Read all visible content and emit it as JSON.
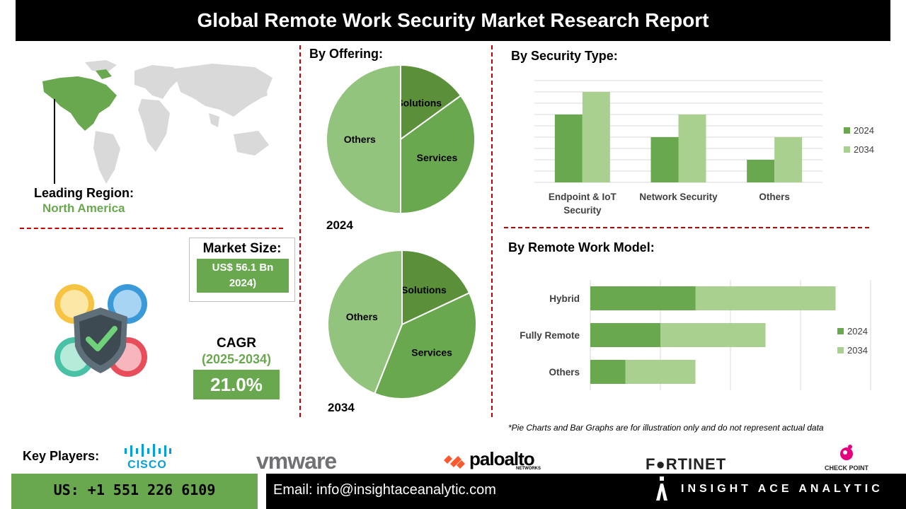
{
  "title": "Global Remote Work Security Market Research Report",
  "region": {
    "heading": "Leading  Region:",
    "value": "North America"
  },
  "market_size": {
    "heading": "Market Size:",
    "value": "US$ 56.1 Bn 2024)"
  },
  "cagr": {
    "heading": "CAGR",
    "period": "(2025-2034)",
    "value": "21.0%"
  },
  "offering": {
    "title": "By Offering:",
    "pie_2024_label": "2024",
    "pie_2034_label": "2034"
  },
  "security_type": {
    "title": "By Security Type:"
  },
  "remote_model": {
    "title": "By Remote Work Model:"
  },
  "footnote": "*Pie Charts and Bar Graphs are for illustration only and do not represent actual data",
  "key_players": {
    "label": "Key Players:",
    "logos": [
      "cisco",
      "vmware",
      "paloalto",
      "FRTINET",
      "CHECK POINT"
    ],
    "cisco_text": "CISCO",
    "vmware_text": "vmware",
    "paloalto_text": "paloalto",
    "paloalto_sub": "NETWORKS",
    "fortinet_text": "F●RTINET",
    "checkpoint_text": "CHECK POINT"
  },
  "footer": {
    "phone": "US: +1 551 226 6109",
    "email": "Email: info@insightaceanalytic.com",
    "brand": "INSIGHT ACE ANALYTIC"
  },
  "colors": {
    "dark_green": "#5b8f3a",
    "mid_green": "#6aa84f",
    "light_green": "#a9d08e",
    "pie_light": "#93c47d",
    "accent_red": "#c00000"
  },
  "chart_data": [
    {
      "type": "pie",
      "title": "2024",
      "categories": [
        "Solutions",
        "Services",
        "Others"
      ],
      "values": [
        15,
        35,
        50
      ]
    },
    {
      "type": "pie",
      "title": "2034",
      "categories": [
        "Solutions",
        "Services",
        "Others"
      ],
      "values": [
        18,
        38,
        44
      ]
    },
    {
      "type": "bar",
      "title": "By Security Type:",
      "categories": [
        "Endpoint & IoT Security",
        "Network Security",
        "Others"
      ],
      "series": [
        {
          "name": "2024",
          "values": [
            6,
            4,
            2
          ]
        },
        {
          "name": "2034",
          "values": [
            8,
            6,
            4
          ]
        }
      ],
      "ylim": [
        0,
        9
      ],
      "grid": true,
      "legend": "right"
    },
    {
      "type": "bar",
      "orientation": "horizontal",
      "stacked": true,
      "title": "By Remote Work Model:",
      "categories": [
        "Hybrid",
        "Fully Remote",
        "Others"
      ],
      "series": [
        {
          "name": "2024",
          "values": [
            1.5,
            1.0,
            0.5
          ]
        },
        {
          "name": "2034",
          "values": [
            2.0,
            1.5,
            1.0
          ]
        }
      ],
      "xlim": [
        0,
        4
      ],
      "grid": true,
      "legend": "right"
    }
  ]
}
